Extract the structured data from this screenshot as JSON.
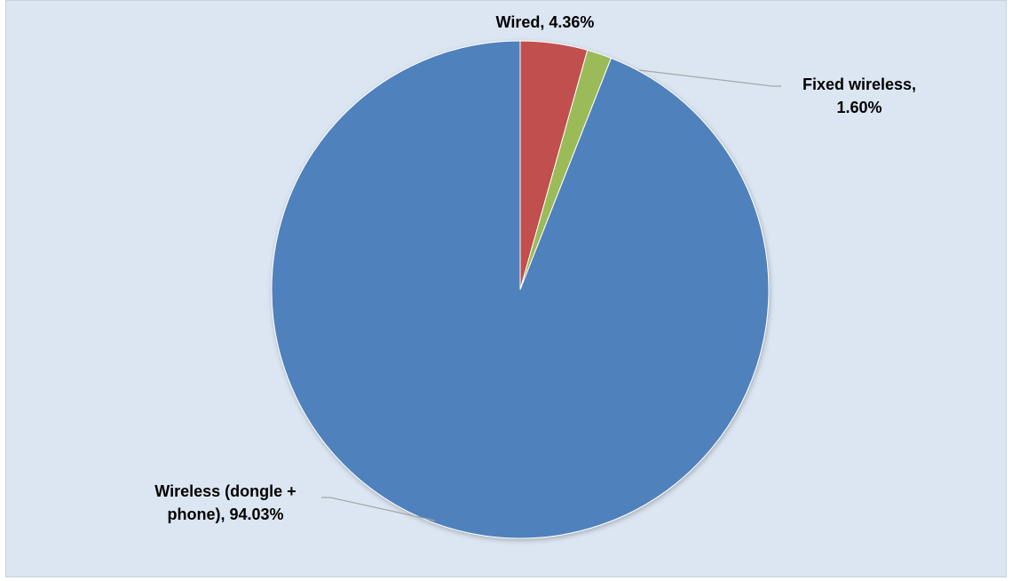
{
  "chart_data": {
    "type": "pie",
    "title": "",
    "slices": [
      {
        "label_lines": [
          "Wired, 4.36%"
        ],
        "name": "Wired",
        "value": 4.36,
        "display": "4.36%",
        "color": "#c0504d"
      },
      {
        "label_lines": [
          "Fixed wireless,",
          "1.60%"
        ],
        "name": "Fixed wireless",
        "value": 1.6,
        "display": "1.60%",
        "color": "#9bbb59"
      },
      {
        "label_lines": [
          "Wireless (dongle +",
          "phone), 94.03%"
        ],
        "name": "Wireless (dongle + phone)",
        "value": 94.03,
        "display": "94.03%",
        "color": "#4f81bd"
      }
    ],
    "start_angle_deg": 0,
    "direction": "clockwise",
    "legend": "none",
    "background_color": "#dce6f2"
  }
}
